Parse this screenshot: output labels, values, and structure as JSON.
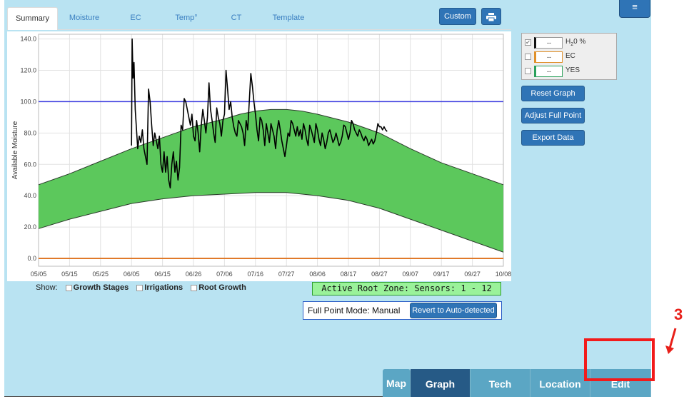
{
  "tabs": [
    "Summary",
    "Moisture",
    "EC",
    "Temp°",
    "CT",
    "Template"
  ],
  "toolbar": {
    "custom_label": "Custom",
    "print_icon": "printer-icon",
    "menu_icon": "hamburger-icon"
  },
  "legend": {
    "items": [
      {
        "value": "--",
        "label_html": "H<sub>2</sub>0 %",
        "label": "H20 %",
        "checked": true,
        "color": "#111111"
      },
      {
        "value": "--",
        "label": "EC",
        "checked": false,
        "color": "#e0902a"
      },
      {
        "value": "--",
        "label": "YES",
        "checked": false,
        "color": "#2aa05a"
      }
    ]
  },
  "actions": {
    "reset": "Reset Graph",
    "adjust": "Adjust Full Point",
    "export": "Export Data"
  },
  "show": {
    "prefix": "Show:",
    "options": [
      "Growth Stages",
      "Irrigations",
      "Root Growth"
    ]
  },
  "active_zone": "Active Root Zone: Sensors: 1 - 12",
  "full_point": {
    "label": "Full Point Mode: Manual",
    "button": "Revert to Auto-detected"
  },
  "bottom_tabs": [
    "Map",
    "Graph",
    "Tech",
    "Location",
    "Edit"
  ],
  "annotation_number": "3",
  "chart_data": {
    "type": "line",
    "ylabel": "Available Moisture",
    "x_ticks": [
      "05/05",
      "05/15",
      "05/25",
      "06/05",
      "06/15",
      "06/26",
      "07/06",
      "07/16",
      "07/27",
      "08/06",
      "08/17",
      "08/27",
      "09/07",
      "09/17",
      "09/27",
      "10/08"
    ],
    "y_ticks": [
      "0.0",
      "20.0",
      "40.0",
      "60.0",
      "80.0",
      "100.0",
      "120.0",
      "140.0"
    ],
    "ylim": [
      -5,
      143
    ],
    "full_line": 100,
    "refill_line": 0,
    "band_upper": [
      [
        0,
        47
      ],
      [
        1,
        54
      ],
      [
        2,
        62
      ],
      [
        3,
        70
      ],
      [
        4,
        77
      ],
      [
        5,
        84
      ],
      [
        6,
        89
      ],
      [
        6.5,
        92
      ],
      [
        7,
        94
      ],
      [
        7.5,
        95
      ],
      [
        8,
        95
      ],
      [
        8.5,
        94
      ],
      [
        9,
        92
      ],
      [
        10,
        87
      ],
      [
        11,
        80
      ],
      [
        12,
        70
      ],
      [
        13,
        61
      ],
      [
        14,
        54
      ],
      [
        15,
        47
      ]
    ],
    "band_lower": [
      [
        0,
        19
      ],
      [
        1,
        25
      ],
      [
        2,
        30
      ],
      [
        3,
        35
      ],
      [
        4,
        38
      ],
      [
        5,
        40
      ],
      [
        6,
        41
      ],
      [
        7,
        42
      ],
      [
        8,
        42
      ],
      [
        9,
        40
      ],
      [
        10,
        37
      ],
      [
        11,
        32
      ],
      [
        12,
        25
      ],
      [
        13,
        18
      ],
      [
        14,
        11
      ],
      [
        15,
        4
      ]
    ],
    "series": [
      {
        "name": "H20 %",
        "color": "#000000",
        "points": [
          [
            3,
            72
          ],
          [
            3.02,
            140
          ],
          [
            3.05,
            115
          ],
          [
            3.08,
            125
          ],
          [
            3.12,
            95
          ],
          [
            3.2,
            70
          ],
          [
            3.25,
            78
          ],
          [
            3.3,
            74
          ],
          [
            3.35,
            82
          ],
          [
            3.4,
            70
          ],
          [
            3.45,
            65
          ],
          [
            3.5,
            60
          ],
          [
            3.55,
            108
          ],
          [
            3.6,
            100
          ],
          [
            3.65,
            85
          ],
          [
            3.7,
            72
          ],
          [
            3.75,
            80
          ],
          [
            3.8,
            75
          ],
          [
            3.85,
            70
          ],
          [
            3.9,
            78
          ],
          [
            3.95,
            60
          ],
          [
            4.0,
            55
          ],
          [
            4.05,
            68
          ],
          [
            4.1,
            55
          ],
          [
            4.15,
            65
          ],
          [
            4.2,
            50
          ],
          [
            4.25,
            45
          ],
          [
            4.3,
            60
          ],
          [
            4.35,
            68
          ],
          [
            4.4,
            55
          ],
          [
            4.45,
            62
          ],
          [
            4.5,
            50
          ],
          [
            4.55,
            58
          ],
          [
            4.6,
            85
          ],
          [
            4.65,
            82
          ],
          [
            4.7,
            102
          ],
          [
            4.75,
            100
          ],
          [
            4.8,
            95
          ],
          [
            4.85,
            90
          ],
          [
            4.9,
            85
          ],
          [
            4.95,
            92
          ],
          [
            5.0,
            78
          ],
          [
            5.05,
            75
          ],
          [
            5.1,
            88
          ],
          [
            5.15,
            80
          ],
          [
            5.2,
            68
          ],
          [
            5.25,
            85
          ],
          [
            5.3,
            95
          ],
          [
            5.35,
            88
          ],
          [
            5.4,
            80
          ],
          [
            5.45,
            90
          ],
          [
            5.5,
            112
          ],
          [
            5.55,
            95
          ],
          [
            5.6,
            88
          ],
          [
            5.65,
            80
          ],
          [
            5.7,
            74
          ],
          [
            5.75,
            96
          ],
          [
            5.8,
            90
          ],
          [
            5.85,
            86
          ],
          [
            5.9,
            78
          ],
          [
            5.95,
            88
          ],
          [
            6.0,
            92
          ],
          [
            6.05,
            120
          ],
          [
            6.1,
            108
          ],
          [
            6.15,
            95
          ],
          [
            6.2,
            100
          ],
          [
            6.25,
            90
          ],
          [
            6.3,
            84
          ],
          [
            6.35,
            80
          ],
          [
            6.4,
            78
          ],
          [
            6.45,
            88
          ],
          [
            6.5,
            86
          ],
          [
            6.55,
            84
          ],
          [
            6.6,
            80
          ],
          [
            6.65,
            72
          ],
          [
            6.7,
            88
          ],
          [
            6.75,
            82
          ],
          [
            6.8,
            100
          ],
          [
            6.85,
            118
          ],
          [
            6.9,
            110
          ],
          [
            6.95,
            100
          ],
          [
            7.0,
            92
          ],
          [
            7.05,
            82
          ],
          [
            7.1,
            75
          ],
          [
            7.15,
            90
          ],
          [
            7.2,
            88
          ],
          [
            7.25,
            82
          ],
          [
            7.3,
            72
          ],
          [
            7.35,
            86
          ],
          [
            7.4,
            80
          ],
          [
            7.45,
            74
          ],
          [
            7.5,
            86
          ],
          [
            7.55,
            82
          ],
          [
            7.6,
            78
          ],
          [
            7.65,
            70
          ],
          [
            7.7,
            82
          ],
          [
            7.75,
            88
          ],
          [
            7.8,
            82
          ],
          [
            7.85,
            75
          ],
          [
            7.9,
            70
          ],
          [
            7.95,
            65
          ],
          [
            8.0,
            72
          ],
          [
            8.05,
            80
          ],
          [
            8.1,
            78
          ],
          [
            8.15,
            88
          ],
          [
            8.2,
            86
          ],
          [
            8.25,
            82
          ],
          [
            8.3,
            78
          ],
          [
            8.35,
            84
          ],
          [
            8.4,
            78
          ],
          [
            8.45,
            82
          ],
          [
            8.5,
            76
          ],
          [
            8.55,
            86
          ],
          [
            8.6,
            82
          ],
          [
            8.65,
            76
          ],
          [
            8.7,
            72
          ],
          [
            8.75,
            85
          ],
          [
            8.8,
            82
          ],
          [
            8.85,
            78
          ],
          [
            8.9,
            74
          ],
          [
            8.95,
            86
          ],
          [
            9.0,
            82
          ],
          [
            9.05,
            76
          ],
          [
            9.1,
            72
          ],
          [
            9.15,
            80
          ],
          [
            9.2,
            76
          ],
          [
            9.25,
            70
          ],
          [
            9.3,
            74
          ],
          [
            9.35,
            80
          ],
          [
            9.4,
            82
          ],
          [
            9.45,
            78
          ],
          [
            9.5,
            74
          ],
          [
            9.55,
            76
          ],
          [
            9.6,
            80
          ],
          [
            9.65,
            76
          ],
          [
            9.7,
            72
          ],
          [
            9.75,
            74
          ],
          [
            9.8,
            78
          ],
          [
            9.85,
            85
          ],
          [
            9.9,
            84
          ],
          [
            9.95,
            80
          ],
          [
            10.0,
            76
          ],
          [
            10.05,
            80
          ],
          [
            10.1,
            88
          ],
          [
            10.15,
            86
          ],
          [
            10.2,
            82
          ],
          [
            10.25,
            80
          ],
          [
            10.3,
            78
          ],
          [
            10.35,
            82
          ],
          [
            10.4,
            80
          ],
          [
            10.45,
            77
          ],
          [
            10.5,
            75
          ],
          [
            10.55,
            78
          ],
          [
            10.6,
            76
          ],
          [
            10.65,
            72
          ],
          [
            10.7,
            74
          ],
          [
            10.75,
            76
          ],
          [
            10.8,
            73
          ],
          [
            10.85,
            75
          ],
          [
            10.9,
            80
          ],
          [
            10.95,
            86
          ],
          [
            11.0,
            84
          ],
          [
            11.05,
            84
          ],
          [
            11.1,
            82
          ],
          [
            11.15,
            84
          ],
          [
            11.2,
            82
          ],
          [
            11.25,
            81
          ]
        ]
      }
    ]
  }
}
